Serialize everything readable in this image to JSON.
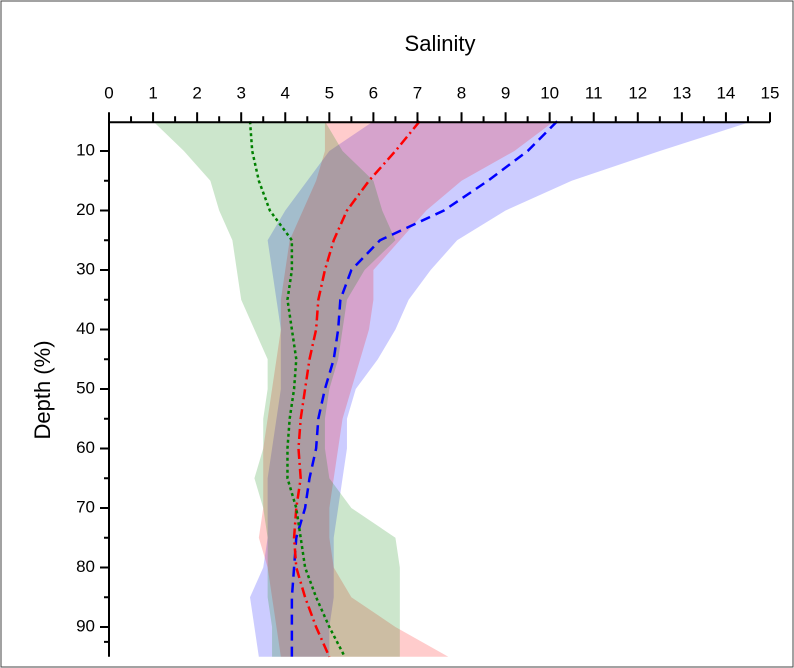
{
  "chart_data": {
    "type": "band-line",
    "title": "Salinity",
    "y_label": "Depth (%)",
    "y": [
      5,
      10,
      15,
      20,
      25,
      30,
      35,
      40,
      45,
      50,
      55,
      60,
      65,
      70,
      75,
      80,
      85,
      90,
      95
    ],
    "xlim": [
      0,
      15
    ],
    "xticks": [
      0,
      1,
      2,
      3,
      4,
      5,
      6,
      7,
      8,
      9,
      10,
      11,
      12,
      13,
      14,
      15
    ],
    "ylim": [
      5,
      95
    ],
    "yticks": [
      10,
      20,
      30,
      40,
      50,
      60,
      70,
      80,
      90
    ],
    "y_inverted": true,
    "series": [
      {
        "color": "#0000ff",
        "dash": "10,6",
        "values": [
          10.17,
          9.5,
          8.6,
          7.6,
          6.15,
          5.5,
          5.25,
          5.2,
          5.1,
          4.9,
          4.75,
          4.7,
          4.55,
          4.45,
          4.25,
          4.2,
          4.15,
          4.15,
          4.15
        ],
        "low": [
          6.0,
          5.0,
          4.5,
          4.0,
          3.6,
          3.7,
          3.8,
          3.9,
          3.9,
          3.9,
          3.8,
          3.7,
          3.6,
          3.6,
          3.6,
          3.5,
          3.2,
          3.3,
          3.4
        ],
        "high": [
          14.6,
          12.5,
          10.5,
          9.0,
          7.9,
          7.3,
          6.8,
          6.5,
          6.1,
          5.6,
          5.4,
          5.4,
          5.3,
          5.2,
          5.1,
          5.1,
          5.1,
          5.0,
          5.0
        ]
      },
      {
        "color": "#ff0000",
        "dash": "10,4,2,4",
        "values": [
          7.05,
          6.5,
          5.9,
          5.4,
          5.1,
          4.9,
          4.75,
          4.7,
          4.55,
          4.45,
          4.35,
          4.3,
          4.35,
          4.25,
          4.2,
          4.25,
          4.45,
          4.7,
          5.0
        ],
        "low": [
          4.9,
          4.9,
          4.7,
          4.4,
          4.1,
          4.0,
          3.9,
          3.9,
          3.8,
          3.7,
          3.6,
          3.5,
          3.5,
          3.5,
          3.4,
          3.6,
          3.7,
          3.8,
          3.9
        ],
        "high": [
          10.1,
          9.2,
          8.0,
          7.2,
          6.6,
          6.0,
          6.0,
          5.9,
          5.7,
          5.5,
          5.3,
          5.2,
          5.1,
          5.0,
          5.0,
          5.1,
          5.5,
          6.5,
          7.7
        ]
      },
      {
        "color": "#008000",
        "dash": "3,3",
        "values": [
          3.2,
          3.25,
          3.4,
          3.65,
          4.15,
          4.15,
          4.05,
          4.15,
          4.25,
          4.2,
          4.1,
          4.05,
          4.05,
          4.25,
          4.35,
          4.45,
          4.7,
          5.0,
          5.35
        ],
        "low": [
          1.0,
          1.7,
          2.3,
          2.5,
          2.8,
          2.9,
          3.0,
          3.3,
          3.6,
          3.6,
          3.5,
          3.5,
          3.3,
          3.5,
          3.6,
          3.6,
          3.6,
          3.7,
          3.7
        ],
        "high": [
          4.9,
          5.3,
          6.0,
          6.2,
          6.5,
          5.8,
          5.4,
          5.3,
          5.2,
          5.0,
          4.9,
          4.9,
          5.0,
          5.5,
          6.5,
          6.6,
          6.6,
          6.6,
          6.6
        ]
      }
    ]
  }
}
